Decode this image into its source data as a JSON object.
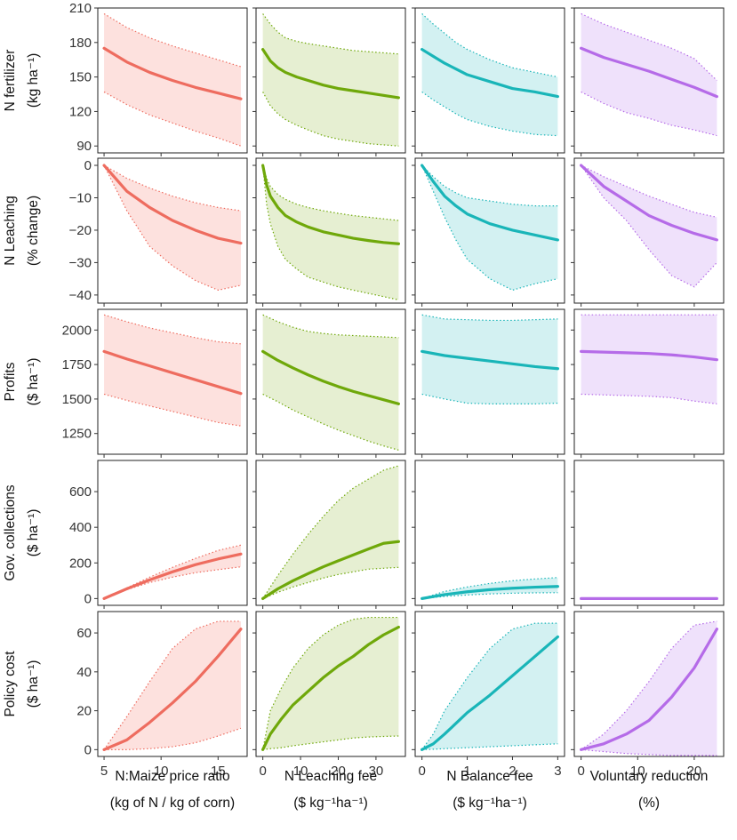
{
  "colors": {
    "price": "#EE6C5F",
    "leaching": "#6FA80A",
    "balance": "#19B5B8",
    "voluntary": "#B56BE8",
    "price_fill": "#FDE1DE",
    "leaching_fill": "#E6EFD2",
    "balance_fill": "#D3F1F2",
    "voluntary_fill": "#EFE1FB"
  },
  "columns": [
    {
      "id": "price",
      "title1": "N:Maize price ratio",
      "title2": "(kg of N / kg of corn)",
      "xlim": [
        4.45,
        17.55
      ],
      "xticks": [
        5,
        10,
        15
      ]
    },
    {
      "id": "leaching",
      "title1": "N Leaching fee",
      "title2": "($  kg⁻¹ha⁻¹)",
      "xlim": [
        -1.8,
        37.8
      ],
      "xticks": [
        0,
        10,
        20,
        30
      ]
    },
    {
      "id": "balance",
      "title1": "N Balance fee",
      "title2": "($  kg⁻¹ha⁻¹)",
      "xlim": [
        -0.15,
        3.15
      ],
      "xticks": [
        0,
        1,
        2,
        3
      ]
    },
    {
      "id": "voluntary",
      "title1": "Voluntary reduction",
      "title2": "(%)",
      "xlim": [
        -1.2,
        25.2
      ],
      "xticks": [
        0,
        10,
        20
      ]
    }
  ],
  "rows": [
    {
      "id": "fertilizer",
      "title1": "N fertilizer",
      "title2": "(kg  ha⁻¹)",
      "ylim": [
        84,
        210
      ],
      "yticks": [
        90,
        120,
        150,
        180,
        210
      ]
    },
    {
      "id": "leaching_change",
      "title1": "N Leaching",
      "title2": "(% change)",
      "ylim": [
        -42.5,
        2.2
      ],
      "yticks": [
        -40,
        -30,
        -20,
        -10,
        0
      ]
    },
    {
      "id": "profits",
      "title1": "Profits",
      "title2": "($  ha⁻¹)",
      "ylim": [
        1100,
        2150
      ],
      "yticks": [
        1250,
        1500,
        1750,
        2000
      ]
    },
    {
      "id": "collections",
      "title1": "Gov. collections",
      "title2": "($  ha⁻¹)",
      "ylim": [
        -38,
        775
      ],
      "yticks": [
        0,
        200,
        400,
        600
      ]
    },
    {
      "id": "policy_cost",
      "title1": "Policy cost",
      "title2": "($  ha⁻¹)",
      "ylim": [
        -3.5,
        71
      ],
      "yticks": [
        0,
        20,
        40,
        60
      ]
    }
  ],
  "chart_data": {
    "type": "line",
    "title": "",
    "description": "Faceted ribbon line chart; each panel shows median line with dotted upper/lower bounds",
    "panels": [
      {
        "row": "fertilizer",
        "col": "price",
        "x": [
          5,
          7,
          9,
          11,
          13,
          15,
          17
        ],
        "median": [
          175,
          163,
          154,
          147,
          141,
          136,
          131
        ],
        "upper": [
          205,
          193,
          184,
          177,
          171,
          165,
          159
        ],
        "lower": [
          137,
          126,
          117,
          110,
          103,
          97,
          90
        ]
      },
      {
        "row": "fertilizer",
        "col": "leaching",
        "x": [
          0,
          2,
          4,
          6,
          9,
          12,
          16,
          20,
          24,
          28,
          32,
          36
        ],
        "median": [
          174,
          164,
          158,
          154,
          150,
          147,
          143,
          140,
          138,
          136,
          134,
          132
        ],
        "upper": [
          205,
          196,
          189,
          184,
          181,
          179,
          177,
          175,
          173,
          172,
          171,
          170
        ],
        "lower": [
          137,
          125,
          118,
          113,
          108,
          104,
          99,
          96,
          94,
          92,
          91,
          90
        ]
      },
      {
        "row": "fertilizer",
        "col": "balance",
        "x": [
          0,
          0.25,
          0.5,
          0.75,
          1,
          1.5,
          2,
          2.5,
          3
        ],
        "median": [
          174,
          168,
          162,
          157,
          152,
          146,
          140,
          137,
          133
        ],
        "upper": [
          205,
          196,
          188,
          180,
          174,
          165,
          158,
          154,
          150
        ],
        "lower": [
          137,
          130,
          124,
          118,
          113,
          107,
          103,
          100,
          99
        ]
      },
      {
        "row": "fertilizer",
        "col": "voluntary",
        "x": [
          0,
          4,
          8,
          12,
          16,
          20,
          24
        ],
        "median": [
          175,
          167,
          161,
          155,
          148,
          141,
          133
        ],
        "upper": [
          205,
          196,
          189,
          182,
          175,
          166,
          147
        ],
        "lower": [
          137,
          127,
          119,
          114,
          108,
          104,
          99
        ]
      },
      {
        "row": "leaching_change",
        "col": "price",
        "x": [
          5,
          7,
          9,
          11,
          13,
          15,
          17
        ],
        "median": [
          0,
          -8,
          -13,
          -17,
          -20,
          -22.5,
          -24
        ],
        "upper": [
          0,
          -4,
          -7,
          -9.5,
          -11.5,
          -13,
          -14
        ],
        "lower": [
          0,
          -14,
          -25,
          -31,
          -35.5,
          -38.5,
          -37
        ]
      },
      {
        "row": "leaching_change",
        "col": "leaching",
        "x": [
          0,
          1,
          2,
          4,
          6,
          9,
          12,
          16,
          20,
          24,
          28,
          32,
          36
        ],
        "median": [
          0,
          -6,
          -9.5,
          -13,
          -15.5,
          -17.5,
          -19,
          -20.5,
          -21.5,
          -22.5,
          -23.2,
          -23.8,
          -24.2
        ],
        "upper": [
          0,
          -4,
          -6.5,
          -9,
          -10.5,
          -12,
          -13,
          -14,
          -14.8,
          -15.5,
          -16,
          -16.5,
          -17
        ],
        "lower": [
          0,
          -12,
          -18,
          -25,
          -29,
          -32,
          -34.5,
          -36,
          -37.5,
          -38.5,
          -39.5,
          -40.5,
          -41.5
        ]
      },
      {
        "row": "leaching_change",
        "col": "balance",
        "x": [
          0,
          0.25,
          0.5,
          0.75,
          1,
          1.5,
          2,
          2.5,
          3
        ],
        "median": [
          0,
          -5,
          -9.5,
          -12.5,
          -15,
          -18,
          -20,
          -21.5,
          -23
        ],
        "upper": [
          0,
          -3.5,
          -6.5,
          -8.5,
          -10,
          -11,
          -12,
          -12.5,
          -12.5
        ],
        "lower": [
          0,
          -8,
          -16,
          -23,
          -29,
          -35,
          -38.5,
          -36.5,
          -35
        ]
      },
      {
        "row": "leaching_change",
        "col": "voluntary",
        "x": [
          0,
          4,
          8,
          12,
          16,
          20,
          24
        ],
        "median": [
          0,
          -6.5,
          -11,
          -15.5,
          -18.5,
          -21,
          -23
        ],
        "upper": [
          0,
          -3.5,
          -6.5,
          -9.5,
          -12,
          -14.5,
          -16
        ],
        "lower": [
          0,
          -10,
          -17,
          -26,
          -34,
          -37.5,
          -30
        ]
      },
      {
        "row": "profits",
        "col": "price",
        "x": [
          5,
          7,
          9,
          11,
          13,
          15,
          17
        ],
        "median": [
          1845,
          1790,
          1740,
          1690,
          1640,
          1590,
          1540
        ],
        "upper": [
          2110,
          2060,
          2015,
          1980,
          1945,
          1915,
          1900
        ],
        "lower": [
          1535,
          1490,
          1450,
          1410,
          1370,
          1330,
          1305
        ]
      },
      {
        "row": "profits",
        "col": "leaching",
        "x": [
          0,
          4,
          8,
          12,
          16,
          20,
          24,
          28,
          32,
          36
        ],
        "median": [
          1845,
          1780,
          1725,
          1675,
          1630,
          1590,
          1555,
          1525,
          1495,
          1465
        ],
        "upper": [
          2110,
          2060,
          2020,
          1990,
          1975,
          1965,
          1960,
          1955,
          1950,
          1945
        ],
        "lower": [
          1535,
          1480,
          1420,
          1370,
          1320,
          1275,
          1235,
          1195,
          1160,
          1130
        ]
      },
      {
        "row": "profits",
        "col": "balance",
        "x": [
          0,
          0.5,
          1,
          1.5,
          2,
          2.5,
          3
        ],
        "median": [
          1845,
          1815,
          1795,
          1775,
          1755,
          1735,
          1720
        ],
        "upper": [
          2110,
          2080,
          2075,
          2070,
          2070,
          2075,
          2080
        ],
        "lower": [
          1535,
          1500,
          1470,
          1465,
          1465,
          1465,
          1470
        ]
      },
      {
        "row": "profits",
        "col": "voluntary",
        "x": [
          0,
          4,
          8,
          12,
          16,
          20,
          24
        ],
        "median": [
          1845,
          1840,
          1835,
          1830,
          1820,
          1805,
          1785
        ],
        "upper": [
          2110,
          2110,
          2110,
          2110,
          2110,
          2110,
          2110
        ],
        "lower": [
          1535,
          1530,
          1525,
          1520,
          1510,
          1485,
          1465
        ]
      },
      {
        "row": "collections",
        "col": "price",
        "x": [
          5,
          7,
          9,
          11,
          13,
          15,
          17
        ],
        "median": [
          0,
          55,
          105,
          150,
          190,
          222,
          250
        ],
        "upper": [
          0,
          60,
          120,
          175,
          225,
          270,
          300
        ],
        "lower": [
          0,
          50,
          90,
          120,
          145,
          162,
          178
        ]
      },
      {
        "row": "collections",
        "col": "leaching",
        "x": [
          0,
          4,
          8,
          12,
          16,
          20,
          24,
          28,
          32,
          36
        ],
        "median": [
          0,
          55,
          100,
          140,
          178,
          212,
          245,
          278,
          310,
          320
        ],
        "upper": [
          0,
          130,
          250,
          360,
          460,
          550,
          620,
          670,
          720,
          745
        ],
        "lower": [
          0,
          35,
          65,
          90,
          115,
          135,
          150,
          165,
          170,
          175
        ]
      },
      {
        "row": "collections",
        "col": "balance",
        "x": [
          0,
          0.5,
          1,
          1.5,
          2,
          2.5,
          3
        ],
        "median": [
          0,
          22,
          38,
          50,
          58,
          64,
          68
        ],
        "upper": [
          0,
          40,
          65,
          85,
          100,
          110,
          118
        ],
        "lower": [
          0,
          12,
          20,
          26,
          30,
          32,
          33
        ]
      },
      {
        "row": "collections",
        "col": "voluntary",
        "x": [
          0,
          24
        ],
        "median": [
          0,
          0
        ],
        "upper": [
          0,
          0
        ],
        "lower": [
          0,
          0
        ]
      },
      {
        "row": "policy_cost",
        "col": "price",
        "x": [
          5,
          7,
          9,
          11,
          13,
          15,
          17
        ],
        "median": [
          0,
          5,
          14,
          24,
          35,
          48,
          62
        ],
        "upper": [
          0,
          17,
          35,
          52,
          62,
          66,
          66
        ],
        "lower": [
          0,
          0,
          0.5,
          1.5,
          3.5,
          7,
          11
        ]
      },
      {
        "row": "policy_cost",
        "col": "leaching",
        "x": [
          0,
          2,
          5,
          8,
          12,
          16,
          20,
          24,
          28,
          32,
          36
        ],
        "median": [
          0,
          8,
          16,
          23,
          30,
          37,
          43,
          48,
          54,
          59,
          63
        ],
        "upper": [
          0,
          20,
          32,
          42,
          52,
          59,
          64,
          67,
          68,
          68,
          68
        ],
        "lower": [
          0,
          0.5,
          1,
          2,
          3,
          4,
          5,
          6,
          6.5,
          6.8,
          7
        ]
      },
      {
        "row": "policy_cost",
        "col": "balance",
        "x": [
          0,
          0.25,
          0.5,
          1,
          1.5,
          2,
          2.5,
          3
        ],
        "median": [
          0,
          3,
          8,
          19,
          28,
          38,
          48,
          58
        ],
        "upper": [
          0,
          8,
          20,
          37,
          52,
          62,
          65,
          65
        ],
        "lower": [
          0,
          0.2,
          0.5,
          1,
          1.5,
          2,
          2.5,
          3
        ]
      },
      {
        "row": "policy_cost",
        "col": "voluntary",
        "x": [
          0,
          4,
          8,
          12,
          16,
          20,
          24
        ],
        "median": [
          0,
          3,
          8,
          15,
          27,
          42,
          62
        ],
        "upper": [
          0,
          8,
          20,
          35,
          52,
          64,
          66
        ],
        "lower": [
          0,
          -1,
          -2,
          -2.5,
          -3,
          -3,
          -3
        ]
      }
    ]
  }
}
